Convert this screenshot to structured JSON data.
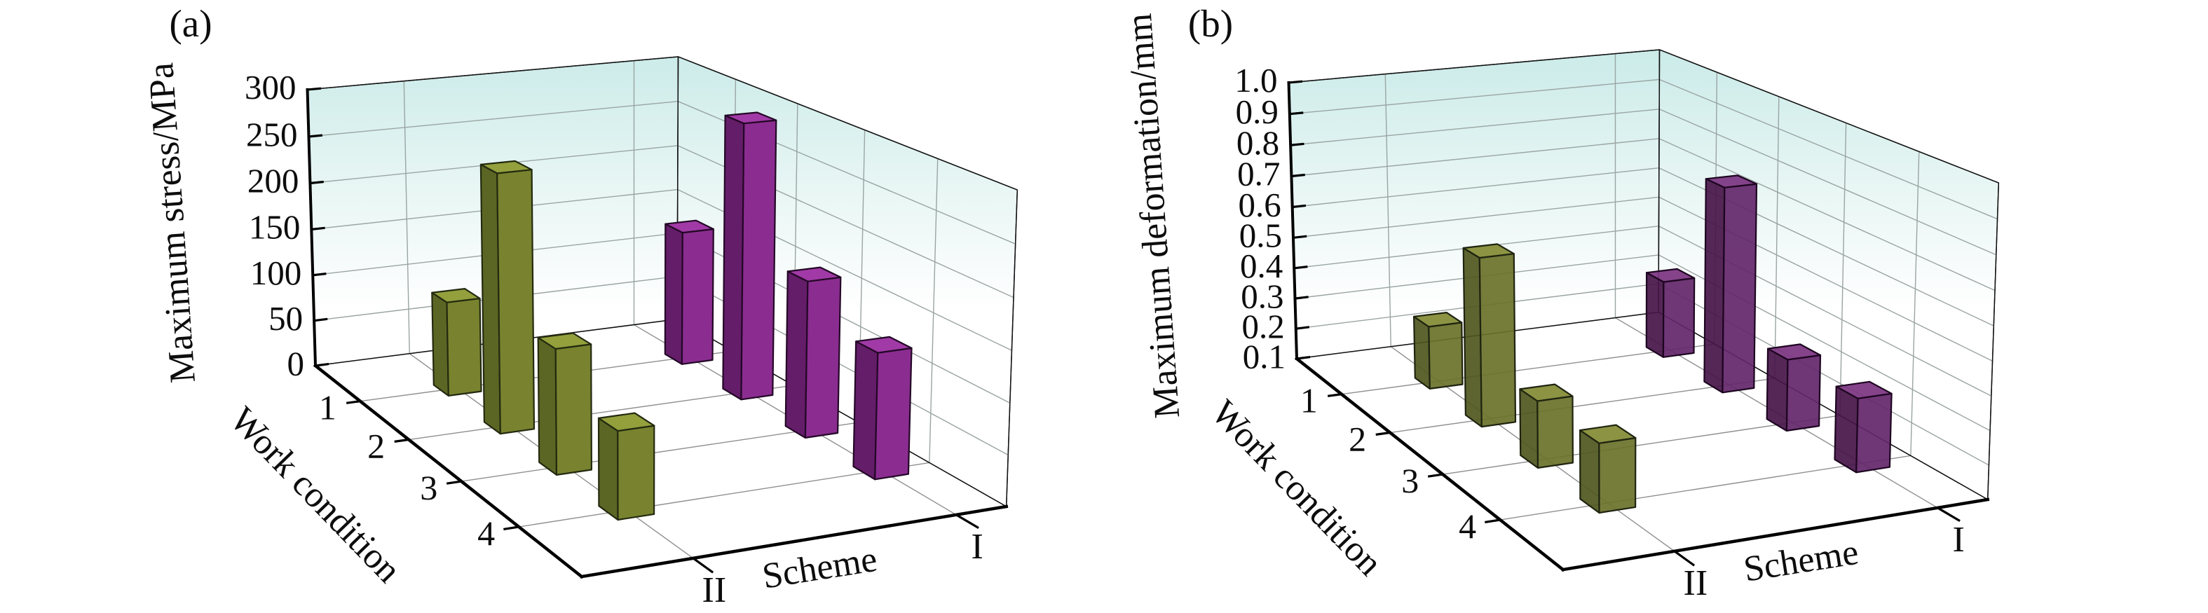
{
  "figure": {
    "description": "Two 3D bar charts comparing two schemes under four work conditions",
    "background": "#ffffff"
  },
  "colors": {
    "wall_top": "#cbebe9",
    "wall_mid": "#e8f6f4",
    "wall_bottom": "#ffffff",
    "grid": "#8f8f8f",
    "wall_grid": "#9aa5a3",
    "axis": "#000000"
  },
  "chart_data": [
    {
      "type": "bar",
      "subtype": "3d-column",
      "panel_label": "(a)",
      "zlabel": "Maximum stress/MPa",
      "zlim": [
        0,
        300
      ],
      "z_tick_values": [
        0,
        50,
        100,
        150,
        200,
        250,
        300
      ],
      "z_tick_labels": [
        "0",
        "50",
        "100",
        "150",
        "200",
        "250",
        "300"
      ],
      "ylabel": "Work condition",
      "y_categories": [
        "1",
        "2",
        "3",
        "4"
      ],
      "xlabel": "Scheme",
      "x_categories": [
        "II",
        "I"
      ],
      "grid": true,
      "legend": "none",
      "series": [
        {
          "name": "Scheme II",
          "values": [
            100,
            265,
            125,
            85
          ],
          "color_front": "#79832f",
          "color_side": "#5c6624",
          "color_top": "#93a03c",
          "edge": "#232a10",
          "opacity": 1.0
        },
        {
          "name": "Scheme I",
          "values": [
            145,
            290,
            160,
            125
          ],
          "color_front": "#8b2d90",
          "color_side": "#641d69",
          "color_top": "#a13aa6",
          "edge": "#230726",
          "opacity": 1.0
        }
      ]
    },
    {
      "type": "bar",
      "subtype": "3d-column",
      "panel_label": "(b)",
      "zlabel": "Maximum deformation/mm",
      "zlim": [
        0.1,
        1.0
      ],
      "z_tick_values": [
        0.1,
        0.2,
        0.3,
        0.4,
        0.5,
        0.6,
        0.7,
        0.8,
        0.9,
        1.0
      ],
      "z_tick_labels": [
        "0.1",
        "0.2",
        "0.3",
        "0.4",
        "0.5",
        "0.6",
        "0.7",
        "0.8",
        "0.9",
        "1.0"
      ],
      "ylabel": "Work condition",
      "y_categories": [
        "1",
        "2",
        "3",
        "4"
      ],
      "xlabel": "Scheme",
      "x_categories": [
        "II",
        "I"
      ],
      "grid": true,
      "legend": "none",
      "series": [
        {
          "name": "Scheme II",
          "values": [
            0.3,
            0.62,
            0.3,
            0.3
          ],
          "color_front": "#6a7129",
          "color_side": "#50571e",
          "color_top": "#828a33",
          "edge": "#1f2410",
          "opacity": 0.92
        },
        {
          "name": "Scheme I",
          "values": [
            0.35,
            0.75,
            0.32,
            0.32
          ],
          "color_front": "#63266a",
          "color_side": "#471549",
          "color_top": "#7b3380",
          "edge": "#1d0520",
          "opacity": 0.92
        }
      ]
    }
  ]
}
